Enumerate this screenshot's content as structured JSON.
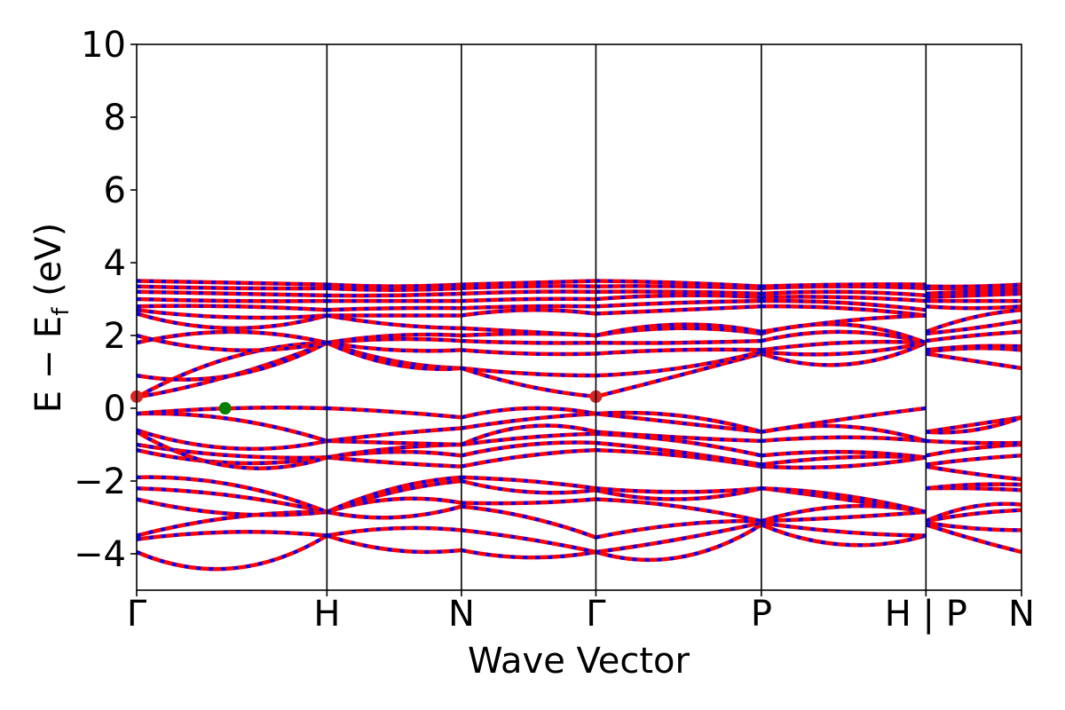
{
  "chart_data": {
    "type": "line",
    "title": "",
    "xlabel": "Wave Vector",
    "ylabel_main": "E − E",
    "ylabel_sub": "f",
    "ylabel_unit": " (eV)",
    "ylim": [
      -5,
      10
    ],
    "yticks": [
      {
        "value": 10,
        "label": "10"
      },
      {
        "value": 8,
        "label": "8"
      },
      {
        "value": 6,
        "label": "6"
      },
      {
        "value": 4,
        "label": "4"
      },
      {
        "value": 2,
        "label": "2"
      },
      {
        "value": 0,
        "label": "0"
      },
      {
        "value": -2,
        "label": "−2"
      },
      {
        "value": -4,
        "label": "−4"
      }
    ],
    "xlim": [
      0,
      1
    ],
    "kpoints": [
      {
        "label": "Γ",
        "pos": 0.0
      },
      {
        "label": "H",
        "pos": 0.215
      },
      {
        "label": "N",
        "pos": 0.367
      },
      {
        "label": "Γ",
        "pos": 0.519
      },
      {
        "label": "P",
        "pos": 0.706
      },
      {
        "label": "H | P",
        "pos": 0.892
      },
      {
        "label": "N",
        "pos": 1.0
      }
    ],
    "grid": false,
    "colors": {
      "spin_up": "#ff0000",
      "spin_down": "#0000ff",
      "cbm_marker": "#d62728",
      "vbm_marker": "#008000"
    },
    "cbm_points": [
      {
        "x": 0.0,
        "y": 0.32
      },
      {
        "x": 0.519,
        "y": 0.32
      }
    ],
    "vbm_points": [
      {
        "x": 0.1,
        "y": 0.0
      }
    ],
    "segments": [
      {
        "x0": 0.0,
        "x1": 0.215,
        "bands": [
          [
            -3.95,
            -4.4,
            -3.5
          ],
          [
            -3.6,
            -3.4,
            -3.5
          ],
          [
            -3.5,
            -3.0,
            -2.85
          ],
          [
            -2.5,
            -2.9,
            -2.85
          ],
          [
            -2.2,
            -2.4,
            -2.85
          ],
          [
            -1.9,
            -2.1,
            -2.85
          ],
          [
            -1.15,
            -1.5,
            -1.35
          ],
          [
            -1.0,
            -1.3,
            -1.35
          ],
          [
            -0.65,
            -1.6,
            -1.35
          ],
          [
            -0.6,
            -1.1,
            -0.9
          ],
          [
            -0.15,
            -0.3,
            -0.9
          ],
          [
            -0.15,
            0.0,
            0.0
          ],
          [
            0.3,
            0.9,
            1.8
          ],
          [
            0.3,
            1.4,
            1.8
          ],
          [
            0.9,
            0.9,
            1.8
          ],
          [
            1.8,
            2.1,
            1.8
          ],
          [
            2.0,
            1.6,
            1.8
          ],
          [
            2.6,
            2.2,
            2.55
          ],
          [
            2.7,
            2.5,
            2.55
          ],
          [
            2.8,
            2.8,
            2.7
          ],
          [
            3.0,
            2.95,
            2.95
          ],
          [
            3.2,
            3.15,
            3.1
          ],
          [
            3.35,
            3.3,
            3.3
          ],
          [
            3.5,
            3.45,
            3.4
          ]
        ]
      },
      {
        "x0": 0.215,
        "x1": 0.367,
        "bands": [
          [
            -3.5,
            -3.9,
            -3.9
          ],
          [
            -3.5,
            -3.3,
            -3.35
          ],
          [
            -2.85,
            -3.0,
            -2.7
          ],
          [
            -2.85,
            -2.5,
            -2.6
          ],
          [
            -2.85,
            -2.3,
            -2.0
          ],
          [
            -2.85,
            -2.2,
            -1.9
          ],
          [
            -1.35,
            -1.5,
            -1.6
          ],
          [
            -1.35,
            -1.2,
            -1.3
          ],
          [
            -1.35,
            -1.1,
            -1.0
          ],
          [
            -0.9,
            -0.95,
            -1.0
          ],
          [
            -0.9,
            -0.7,
            -0.55
          ],
          [
            0.0,
            -0.1,
            -0.25
          ],
          [
            1.8,
            1.3,
            1.1
          ],
          [
            1.8,
            1.2,
            1.1
          ],
          [
            1.8,
            1.6,
            1.6
          ],
          [
            1.8,
            1.9,
            1.85
          ],
          [
            1.8,
            2.0,
            2.0
          ],
          [
            2.55,
            2.3,
            2.2
          ],
          [
            2.55,
            2.55,
            2.55
          ],
          [
            2.7,
            2.75,
            2.75
          ],
          [
            2.95,
            2.95,
            2.95
          ],
          [
            3.1,
            3.1,
            3.15
          ],
          [
            3.3,
            3.25,
            3.3
          ],
          [
            3.4,
            3.35,
            3.4
          ]
        ]
      },
      {
        "x0": 0.367,
        "x1": 0.519,
        "bands": [
          [
            -3.9,
            -4.1,
            -3.95
          ],
          [
            -3.35,
            -3.6,
            -3.95
          ],
          [
            -2.7,
            -3.0,
            -3.55
          ],
          [
            -2.6,
            -2.6,
            -2.5
          ],
          [
            -2.0,
            -2.3,
            -2.25
          ],
          [
            -1.9,
            -2.0,
            -2.2
          ],
          [
            -1.6,
            -1.3,
            -1.15
          ],
          [
            -1.3,
            -1.0,
            -0.95
          ],
          [
            -1.0,
            -0.8,
            -0.7
          ],
          [
            -1.0,
            -0.5,
            -0.65
          ],
          [
            -0.55,
            -0.3,
            -0.15
          ],
          [
            -0.25,
            0.0,
            -0.15
          ],
          [
            1.1,
            0.6,
            0.32
          ],
          [
            1.1,
            0.95,
            0.9
          ],
          [
            1.6,
            1.5,
            1.5
          ],
          [
            1.85,
            1.8,
            1.8
          ],
          [
            2.0,
            2.05,
            2.0
          ],
          [
            2.2,
            2.1,
            2.0
          ],
          [
            2.55,
            2.7,
            2.6
          ],
          [
            2.75,
            2.8,
            2.8
          ],
          [
            2.95,
            3.0,
            3.0
          ],
          [
            3.15,
            3.2,
            3.2
          ],
          [
            3.3,
            3.35,
            3.35
          ],
          [
            3.4,
            3.45,
            3.5
          ]
        ]
      },
      {
        "x0": 0.519,
        "x1": 0.706,
        "bands": [
          [
            -3.95,
            -4.1,
            -3.2
          ],
          [
            -3.95,
            -3.6,
            -3.15
          ],
          [
            -3.55,
            -3.2,
            -3.1
          ],
          [
            -2.5,
            -2.7,
            -3.1
          ],
          [
            -2.25,
            -2.5,
            -2.2
          ],
          [
            -2.2,
            -2.3,
            -2.2
          ],
          [
            -1.15,
            -1.3,
            -1.6
          ],
          [
            -0.95,
            -1.2,
            -1.55
          ],
          [
            -0.7,
            -0.9,
            -1.3
          ],
          [
            -0.65,
            -0.8,
            -0.9
          ],
          [
            -0.15,
            -0.4,
            -0.65
          ],
          [
            -0.15,
            -0.2,
            -0.65
          ],
          [
            0.32,
            0.9,
            1.5
          ],
          [
            0.9,
            1.1,
            1.55
          ],
          [
            1.5,
            1.6,
            1.6
          ],
          [
            1.8,
            1.8,
            1.85
          ],
          [
            2.0,
            2.2,
            2.05
          ],
          [
            2.0,
            2.3,
            2.1
          ],
          [
            2.6,
            2.7,
            2.8
          ],
          [
            2.8,
            2.9,
            2.95
          ],
          [
            3.0,
            3.1,
            3.05
          ],
          [
            3.2,
            3.2,
            3.15
          ],
          [
            3.35,
            3.35,
            3.3
          ],
          [
            3.5,
            3.45,
            3.35
          ]
        ]
      },
      {
        "x0": 0.706,
        "x1": 0.892,
        "bands": [
          [
            -3.2,
            -3.75,
            -3.5
          ],
          [
            -3.15,
            -3.4,
            -3.5
          ],
          [
            -3.1,
            -3.0,
            -2.85
          ],
          [
            -3.1,
            -2.7,
            -2.85
          ],
          [
            -2.2,
            -2.5,
            -2.85
          ],
          [
            -2.2,
            -2.4,
            -2.85
          ],
          [
            -1.6,
            -1.6,
            -1.35
          ],
          [
            -1.55,
            -1.35,
            -1.35
          ],
          [
            -1.3,
            -1.2,
            -1.35
          ],
          [
            -0.9,
            -0.8,
            -0.9
          ],
          [
            -0.65,
            -0.5,
            -0.9
          ],
          [
            -0.65,
            -0.3,
            0.0
          ],
          [
            1.5,
            1.2,
            1.8
          ],
          [
            1.55,
            1.5,
            1.8
          ],
          [
            1.6,
            1.8,
            1.8
          ],
          [
            1.85,
            2.1,
            1.8
          ],
          [
            2.05,
            2.3,
            1.8
          ],
          [
            2.1,
            2.4,
            2.55
          ],
          [
            2.8,
            2.75,
            2.55
          ],
          [
            2.95,
            2.9,
            2.7
          ],
          [
            3.05,
            3.05,
            2.95
          ],
          [
            3.15,
            3.2,
            3.1
          ],
          [
            3.3,
            3.35,
            3.3
          ],
          [
            3.35,
            3.4,
            3.4
          ]
        ]
      },
      {
        "x0": 0.892,
        "x1": 1.0,
        "bands": [
          [
            -3.2,
            -3.6,
            -3.95
          ],
          [
            -3.15,
            -3.3,
            -3.35
          ],
          [
            -3.1,
            -2.9,
            -2.8
          ],
          [
            -3.1,
            -2.7,
            -2.65
          ],
          [
            -2.2,
            -2.2,
            -2.25
          ],
          [
            -2.2,
            -2.1,
            -2.1
          ],
          [
            -1.6,
            -1.8,
            -1.95
          ],
          [
            -1.55,
            -1.4,
            -1.3
          ],
          [
            -1.3,
            -1.1,
            -1.0
          ],
          [
            -0.9,
            -0.95,
            -0.95
          ],
          [
            -0.65,
            -0.45,
            -0.25
          ],
          [
            -0.65,
            -0.6,
            -0.25
          ],
          [
            1.5,
            1.3,
            1.1
          ],
          [
            1.55,
            1.65,
            1.6
          ],
          [
            1.6,
            1.7,
            1.7
          ],
          [
            1.85,
            2.0,
            2.1
          ],
          [
            2.05,
            2.2,
            2.4
          ],
          [
            2.1,
            2.5,
            2.7
          ],
          [
            2.8,
            2.75,
            2.8
          ],
          [
            2.95,
            2.95,
            2.95
          ],
          [
            3.05,
            3.1,
            3.15
          ],
          [
            3.15,
            3.2,
            3.2
          ],
          [
            3.3,
            3.3,
            3.3
          ],
          [
            3.35,
            3.35,
            3.4
          ]
        ]
      }
    ]
  }
}
